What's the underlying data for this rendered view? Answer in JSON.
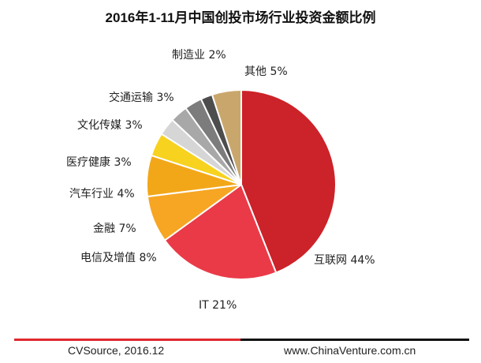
{
  "chart_data": {
    "type": "pie",
    "title": "2016年1-11月中国创投市场行业投资金额比例",
    "slices": [
      {
        "label": "互联网",
        "value": 44,
        "display": "互联网 44%",
        "color": "#cc2229"
      },
      {
        "label": "IT",
        "value": 21,
        "display": "IT 21%",
        "color": "#ea3a48"
      },
      {
        "label": "电信及增值",
        "value": 8,
        "display": "电信及增值 8%",
        "color": "#f6a623"
      },
      {
        "label": "金融",
        "value": 7,
        "display": "金融 7%",
        "color": "#f2a719"
      },
      {
        "label": "汽车行业",
        "value": 4,
        "display": "汽车行业 4%",
        "color": "#f7d21e"
      },
      {
        "label": "医疗健康",
        "value": 3,
        "display": "医疗健康 3%",
        "color": "#d6d6d6"
      },
      {
        "label": "文化传媒",
        "value": 3,
        "display": "文化传媒 3%",
        "color": "#a8a8a8"
      },
      {
        "label": "交通运输",
        "value": 3,
        "display": "交通运输 3%",
        "color": "#7c7c7c"
      },
      {
        "label": "制造业",
        "value": 2,
        "display": "制造业 2%",
        "color": "#4d4d4d"
      },
      {
        "label": "其他",
        "value": 5,
        "display": "其他 5%",
        "color": "#c9a76c"
      }
    ],
    "extra_slice_color": "#e8ba5e",
    "legend": "none"
  },
  "footer": {
    "source": "CVSource, 2016.12",
    "website": "www.ChinaVenture.com.cn"
  }
}
